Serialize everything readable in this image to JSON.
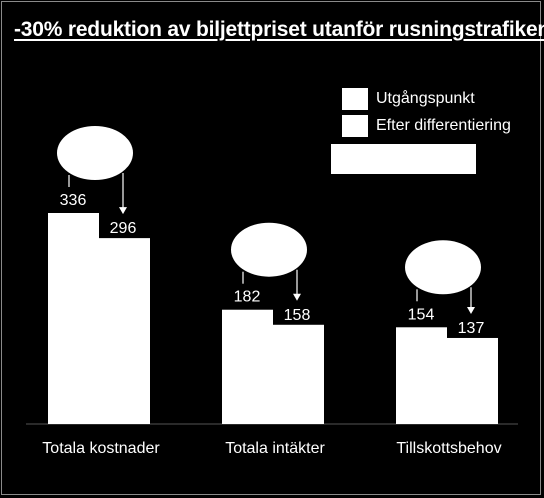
{
  "chart_data": {
    "type": "bar",
    "title": "-30% reduktion av biljettpriset utanför rusningstrafiken",
    "categories": [
      "Totala kostnader",
      "Totala intäkter",
      "Tillskottsbehov"
    ],
    "series": [
      {
        "name": "Utgångspunkt",
        "values": [
          336,
          182,
          154
        ]
      },
      {
        "name": "Efter differentiering",
        "values": [
          296,
          158,
          137
        ]
      }
    ],
    "data_labels": [
      [
        "336",
        "296"
      ],
      [
        "182",
        "158"
      ],
      [
        "154",
        "137"
      ]
    ],
    "legend_placement": "top-right",
    "grid": false,
    "bar_color": "#ffffff",
    "background_color": "#000000"
  }
}
